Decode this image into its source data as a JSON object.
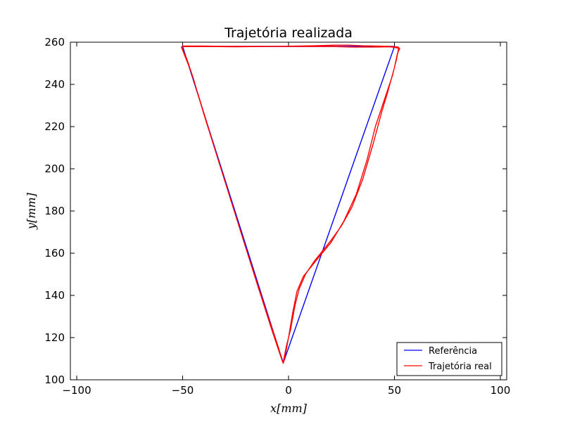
{
  "chart_data": {
    "type": "line",
    "title": "Trajetória realizada",
    "xlabel": "x[mm]",
    "ylabel": "y[mm]",
    "xlim": [
      -103,
      103
    ],
    "ylim": [
      100,
      260
    ],
    "xticks": [
      -100,
      -50,
      0,
      50,
      100
    ],
    "yticks": [
      100,
      120,
      140,
      160,
      180,
      200,
      220,
      240,
      260
    ],
    "grid": false,
    "legend_position": "lower-right",
    "series": [
      {
        "name": "Referência",
        "color": "#0000ff",
        "points": [
          [
            -50,
            258
          ],
          [
            -2.5,
            108
          ],
          [
            50,
            258
          ],
          [
            -50,
            258
          ]
        ]
      },
      {
        "name": "Trajetória real",
        "color": "#ff0000",
        "points": [
          [
            -50.5,
            257.8
          ],
          [
            -48,
            252
          ],
          [
            -45,
            243
          ],
          [
            -40,
            226
          ],
          [
            -30,
            194
          ],
          [
            -20,
            162
          ],
          [
            -10,
            131
          ],
          [
            -5,
            116
          ],
          [
            -3,
            109
          ],
          [
            -2.5,
            108.5
          ],
          [
            -1,
            116
          ],
          [
            1,
            124
          ],
          [
            3,
            135
          ],
          [
            5,
            143
          ],
          [
            8,
            150
          ],
          [
            12,
            156
          ],
          [
            16,
            161
          ],
          [
            20,
            166
          ],
          [
            25,
            173
          ],
          [
            30,
            182
          ],
          [
            35,
            195
          ],
          [
            40,
            212
          ],
          [
            44,
            227
          ],
          [
            47,
            237
          ],
          [
            50,
            248
          ],
          [
            51.5,
            255
          ],
          [
            52.5,
            257
          ],
          [
            51.5,
            257.8
          ],
          [
            45,
            258.1
          ],
          [
            35,
            258.3
          ],
          [
            28,
            258.6
          ],
          [
            22,
            258.6
          ],
          [
            12,
            258.3
          ],
          [
            0,
            258.1
          ],
          [
            -15,
            258
          ],
          [
            -30,
            258
          ],
          [
            -40,
            258.2
          ],
          [
            -50,
            258.2
          ],
          [
            -50.5,
            257.5
          ],
          [
            -46,
            246
          ],
          [
            -42,
            233
          ],
          [
            -35,
            210
          ],
          [
            -25,
            178
          ],
          [
            -15,
            146
          ],
          [
            -8,
            124
          ],
          [
            -4,
            112
          ],
          [
            -2.5,
            107.8
          ],
          [
            -1.5,
            112
          ],
          [
            0,
            120
          ],
          [
            2,
            132
          ],
          [
            4,
            142
          ],
          [
            7,
            149
          ],
          [
            11,
            154
          ],
          [
            15,
            159
          ],
          [
            20,
            165
          ],
          [
            26,
            175
          ],
          [
            32,
            188
          ],
          [
            37,
            204
          ],
          [
            41,
            220
          ],
          [
            45,
            232
          ],
          [
            49,
            244
          ],
          [
            51,
            252
          ],
          [
            52,
            257.2
          ],
          [
            48,
            257.8
          ],
          [
            40,
            257.7
          ],
          [
            30,
            257.7
          ],
          [
            20,
            258
          ],
          [
            5,
            258
          ],
          [
            -10,
            258
          ],
          [
            -25,
            257.8
          ],
          [
            -40,
            258
          ],
          [
            -50,
            257.9
          ]
        ]
      }
    ]
  }
}
